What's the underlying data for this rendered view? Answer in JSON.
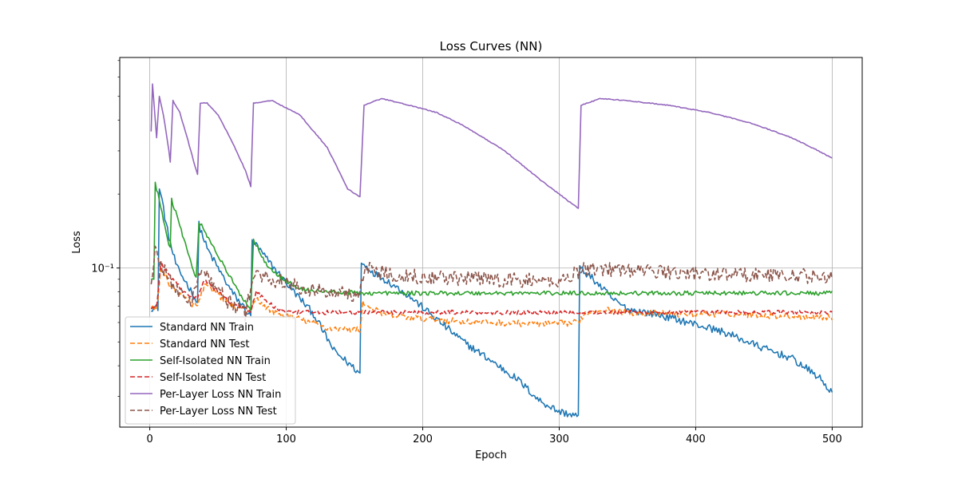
{
  "chart_data": {
    "type": "line",
    "title": "Loss Curves (NN)",
    "xlabel": "Epoch",
    "ylabel": "Loss",
    "yscale": "log",
    "xlim": [
      -22,
      522
    ],
    "ylim": [
      0.0225,
      0.72
    ],
    "grid": true,
    "legend_position": "lower-left",
    "x_ticks": [
      0,
      100,
      200,
      300,
      400,
      500
    ],
    "x_tick_labels": [
      "0",
      "100",
      "200",
      "300",
      "400",
      "500"
    ],
    "y_major_ticks": [
      0.1
    ],
    "y_major_tick_labels": [
      "10⁻¹"
    ],
    "series": [
      {
        "name": "Standard NN Train",
        "color": "#1f77b4",
        "dash": "solid",
        "noise": 0.035,
        "points": [
          [
            1,
            0.069
          ],
          [
            6,
            0.069
          ],
          [
            7,
            0.21
          ],
          [
            9,
            0.19
          ],
          [
            12,
            0.15
          ],
          [
            16,
            0.12
          ],
          [
            20,
            0.1
          ],
          [
            28,
            0.085
          ],
          [
            35,
            0.072
          ],
          [
            36,
            0.15
          ],
          [
            42,
            0.12
          ],
          [
            50,
            0.1
          ],
          [
            60,
            0.08
          ],
          [
            70,
            0.068
          ],
          [
            74,
            0.063
          ],
          [
            75,
            0.13
          ],
          [
            85,
            0.11
          ],
          [
            100,
            0.087
          ],
          [
            120,
            0.065
          ],
          [
            135,
            0.046
          ],
          [
            150,
            0.039
          ],
          [
            154,
            0.037
          ],
          [
            155,
            0.105
          ],
          [
            165,
            0.095
          ],
          [
            175,
            0.088
          ],
          [
            190,
            0.077
          ],
          [
            210,
            0.062
          ],
          [
            230,
            0.05
          ],
          [
            250,
            0.042
          ],
          [
            270,
            0.035
          ],
          [
            285,
            0.029
          ],
          [
            300,
            0.026
          ],
          [
            313,
            0.025
          ],
          [
            314,
            0.025
          ],
          [
            315,
            0.1
          ],
          [
            325,
            0.09
          ],
          [
            340,
            0.074
          ],
          [
            350,
            0.068
          ],
          [
            370,
            0.065
          ],
          [
            390,
            0.061
          ],
          [
            420,
            0.055
          ],
          [
            450,
            0.047
          ],
          [
            470,
            0.043
          ],
          [
            490,
            0.036
          ],
          [
            500,
            0.031
          ]
        ]
      },
      {
        "name": "Standard NN Test",
        "color": "#ff7f0e",
        "dash": "dashed",
        "noise": 0.03,
        "points": [
          [
            1,
            0.068
          ],
          [
            5,
            0.068
          ],
          [
            8,
            0.1
          ],
          [
            15,
            0.085
          ],
          [
            22,
            0.078
          ],
          [
            30,
            0.072
          ],
          [
            35,
            0.07
          ],
          [
            40,
            0.085
          ],
          [
            50,
            0.078
          ],
          [
            60,
            0.07
          ],
          [
            74,
            0.066
          ],
          [
            78,
            0.075
          ],
          [
            90,
            0.066
          ],
          [
            110,
            0.062
          ],
          [
            130,
            0.057
          ],
          [
            154,
            0.056
          ],
          [
            156,
            0.072
          ],
          [
            170,
            0.065
          ],
          [
            190,
            0.063
          ],
          [
            220,
            0.061
          ],
          [
            250,
            0.06
          ],
          [
            290,
            0.059
          ],
          [
            314,
            0.06
          ],
          [
            318,
            0.065
          ],
          [
            330,
            0.068
          ],
          [
            350,
            0.066
          ],
          [
            380,
            0.065
          ],
          [
            420,
            0.065
          ],
          [
            460,
            0.064
          ],
          [
            500,
            0.063
          ]
        ]
      },
      {
        "name": "Self-Isolated NN Train",
        "color": "#2ca02c",
        "dash": "solid",
        "noise": 0.02,
        "points": [
          [
            1,
            0.09
          ],
          [
            3,
            0.09
          ],
          [
            4,
            0.22
          ],
          [
            8,
            0.18
          ],
          [
            12,
            0.14
          ],
          [
            15,
            0.12
          ],
          [
            16,
            0.19
          ],
          [
            22,
            0.15
          ],
          [
            28,
            0.115
          ],
          [
            34,
            0.09
          ],
          [
            36,
            0.155
          ],
          [
            44,
            0.13
          ],
          [
            55,
            0.1
          ],
          [
            65,
            0.08
          ],
          [
            74,
            0.068
          ],
          [
            76,
            0.13
          ],
          [
            85,
            0.105
          ],
          [
            95,
            0.092
          ],
          [
            110,
            0.082
          ],
          [
            130,
            0.08
          ],
          [
            155,
            0.079
          ],
          [
            200,
            0.079
          ],
          [
            300,
            0.079
          ],
          [
            400,
            0.079
          ],
          [
            500,
            0.079
          ]
        ]
      },
      {
        "name": "Self-Isolated NN Test",
        "color": "#d62728",
        "dash": "dashed",
        "noise": 0.02,
        "points": [
          [
            1,
            0.069
          ],
          [
            5,
            0.069
          ],
          [
            8,
            0.105
          ],
          [
            15,
            0.092
          ],
          [
            25,
            0.08
          ],
          [
            35,
            0.075
          ],
          [
            40,
            0.09
          ],
          [
            50,
            0.08
          ],
          [
            60,
            0.072
          ],
          [
            74,
            0.067
          ],
          [
            78,
            0.08
          ],
          [
            90,
            0.07
          ],
          [
            100,
            0.066
          ],
          [
            120,
            0.066
          ],
          [
            200,
            0.066
          ],
          [
            300,
            0.066
          ],
          [
            400,
            0.066
          ],
          [
            500,
            0.066
          ]
        ]
      },
      {
        "name": "Per-Layer Loss NN Train",
        "color": "#9467bd",
        "dash": "solid",
        "noise": 0.004,
        "points": [
          [
            1,
            0.36
          ],
          [
            2,
            0.56
          ],
          [
            5,
            0.34
          ],
          [
            7,
            0.5
          ],
          [
            10,
            0.42
          ],
          [
            14,
            0.3
          ],
          [
            15,
            0.27
          ],
          [
            17,
            0.48
          ],
          [
            22,
            0.43
          ],
          [
            28,
            0.33
          ],
          [
            34,
            0.25
          ],
          [
            35,
            0.24
          ],
          [
            37,
            0.47
          ],
          [
            42,
            0.47
          ],
          [
            50,
            0.42
          ],
          [
            60,
            0.33
          ],
          [
            70,
            0.25
          ],
          [
            74,
            0.215
          ],
          [
            76,
            0.47
          ],
          [
            90,
            0.48
          ],
          [
            110,
            0.42
          ],
          [
            130,
            0.31
          ],
          [
            145,
            0.21
          ],
          [
            154,
            0.195
          ],
          [
            157,
            0.46
          ],
          [
            170,
            0.49
          ],
          [
            190,
            0.46
          ],
          [
            210,
            0.43
          ],
          [
            230,
            0.38
          ],
          [
            260,
            0.3
          ],
          [
            290,
            0.22
          ],
          [
            314,
            0.175
          ],
          [
            316,
            0.46
          ],
          [
            330,
            0.49
          ],
          [
            350,
            0.48
          ],
          [
            380,
            0.46
          ],
          [
            410,
            0.43
          ],
          [
            440,
            0.39
          ],
          [
            470,
            0.34
          ],
          [
            490,
            0.3
          ],
          [
            500,
            0.28
          ]
        ]
      },
      {
        "name": "Per-Layer Loss NN Test",
        "color": "#8c564b",
        "dash": "dashed",
        "noise": 0.07,
        "points": [
          [
            1,
            0.09
          ],
          [
            4,
            0.12
          ],
          [
            10,
            0.1
          ],
          [
            15,
            0.09
          ],
          [
            20,
            0.08
          ],
          [
            30,
            0.072
          ],
          [
            36,
            0.1
          ],
          [
            45,
            0.09
          ],
          [
            55,
            0.075
          ],
          [
            70,
            0.065
          ],
          [
            76,
            0.095
          ],
          [
            90,
            0.09
          ],
          [
            110,
            0.083
          ],
          [
            130,
            0.08
          ],
          [
            154,
            0.078
          ],
          [
            157,
            0.1
          ],
          [
            175,
            0.095
          ],
          [
            200,
            0.092
          ],
          [
            250,
            0.09
          ],
          [
            300,
            0.088
          ],
          [
            318,
            0.1
          ],
          [
            350,
            0.098
          ],
          [
            400,
            0.095
          ],
          [
            450,
            0.094
          ],
          [
            500,
            0.092
          ]
        ]
      }
    ]
  }
}
